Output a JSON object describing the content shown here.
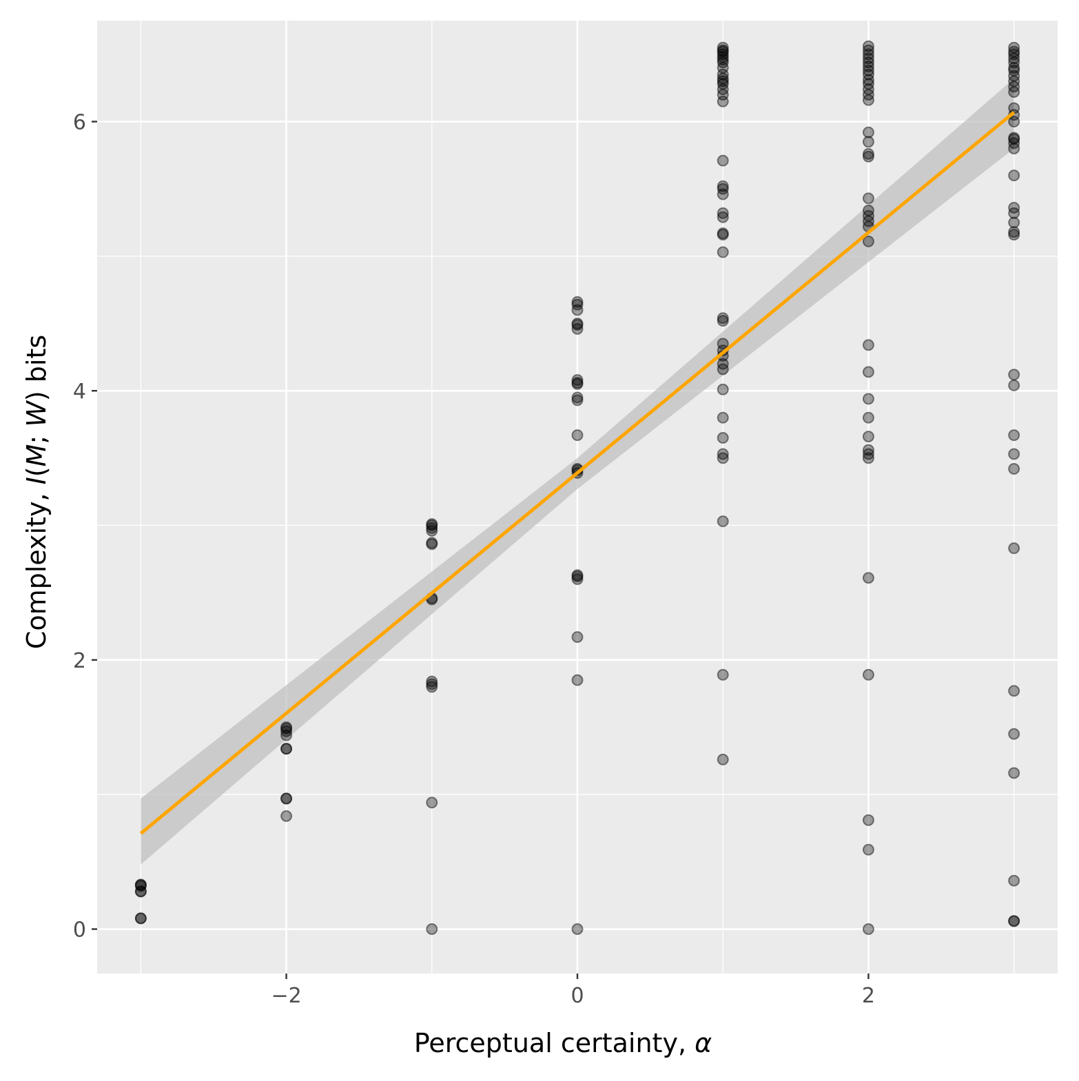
{
  "chart_data": {
    "type": "scatter",
    "xlabel": {
      "prefix": "Perceptual certainty, ",
      "symbol": "α"
    },
    "ylabel": {
      "prefix": "Complexity, ",
      "italic1": "I",
      "mid1": "(",
      "italic2": "M",
      "mid2": "; ",
      "italic3": "W",
      "suffix": ") bits"
    },
    "xlim": [
      -3.3,
      3.3
    ],
    "ylim": [
      -0.33,
      6.75
    ],
    "x_ticks": [
      -2,
      0,
      2
    ],
    "x_tick_labels": [
      "−2",
      "0",
      "2"
    ],
    "y_ticks": [
      0,
      2,
      4,
      6
    ],
    "y_tick_labels": [
      "0",
      "2",
      "4",
      "6"
    ],
    "grid": true,
    "legend": "none",
    "colors": {
      "panel": "#ebebeb",
      "grid": "#ffffff",
      "points": "#000000",
      "fit_line": "#ffa500",
      "ribbon": "#bdbdbd"
    },
    "points": [
      {
        "x": -3,
        "y": [
          0.08,
          0.08,
          0.28,
          0.28,
          0.32,
          0.33,
          0.33
        ]
      },
      {
        "x": -2,
        "y": [
          0.84,
          0.97,
          0.97,
          1.34,
          1.34,
          1.44,
          1.47,
          1.49,
          1.5
        ]
      },
      {
        "x": -1,
        "y": [
          0.0,
          0.94,
          1.8,
          1.82,
          1.84,
          2.45,
          2.46,
          2.86,
          2.87,
          2.96,
          2.98,
          3.0,
          3.01
        ]
      },
      {
        "x": 0,
        "y": [
          0.0,
          1.85,
          2.17,
          2.6,
          2.62,
          2.63,
          3.39,
          3.41,
          3.42,
          3.67,
          3.93,
          3.95,
          4.05,
          4.06,
          4.08,
          4.46,
          4.49,
          4.5,
          4.6,
          4.64,
          4.66
        ]
      },
      {
        "x": 1,
        "y": [
          1.26,
          1.89,
          3.03,
          3.5,
          3.53,
          3.65,
          3.8,
          4.01,
          4.16,
          4.2,
          4.26,
          4.3,
          4.35,
          4.52,
          4.54,
          5.03,
          5.16,
          5.17,
          5.29,
          5.32,
          5.46,
          5.5,
          5.52,
          5.71,
          6.15,
          6.2,
          6.24,
          6.28,
          6.3,
          6.32,
          6.35,
          6.4,
          6.44,
          6.46,
          6.48,
          6.5,
          6.52,
          6.53,
          6.55
        ]
      },
      {
        "x": 2,
        "y": [
          0.0,
          0.59,
          0.81,
          1.89,
          2.61,
          3.5,
          3.53,
          3.56,
          3.66,
          3.8,
          3.94,
          4.14,
          4.34,
          5.11,
          5.22,
          5.26,
          5.3,
          5.34,
          5.43,
          5.74,
          5.76,
          5.85,
          5.92,
          6.16,
          6.2,
          6.24,
          6.28,
          6.31,
          6.35,
          6.38,
          6.41,
          6.44,
          6.47,
          6.5,
          6.53,
          6.56
        ]
      },
      {
        "x": 3,
        "y": [
          0.06,
          0.06,
          0.36,
          1.16,
          1.45,
          1.77,
          2.83,
          3.42,
          3.53,
          3.67,
          4.04,
          4.12,
          5.16,
          5.18,
          5.25,
          5.32,
          5.36,
          5.6,
          5.8,
          5.84,
          5.87,
          5.88,
          6.0,
          6.05,
          6.1,
          6.22,
          6.26,
          6.3,
          6.34,
          6.38,
          6.4,
          6.44,
          6.47,
          6.5,
          6.52,
          6.55
        ]
      }
    ],
    "fit": {
      "intercept": 3.39,
      "slope": 0.893,
      "x_range": [
        -3,
        3
      ]
    },
    "ribbon": [
      {
        "x": -3,
        "lower": 0.48,
        "upper": 0.97
      },
      {
        "x": 0,
        "lower": 3.27,
        "upper": 3.5
      },
      {
        "x": 3,
        "lower": 5.8,
        "upper": 6.32
      }
    ]
  }
}
